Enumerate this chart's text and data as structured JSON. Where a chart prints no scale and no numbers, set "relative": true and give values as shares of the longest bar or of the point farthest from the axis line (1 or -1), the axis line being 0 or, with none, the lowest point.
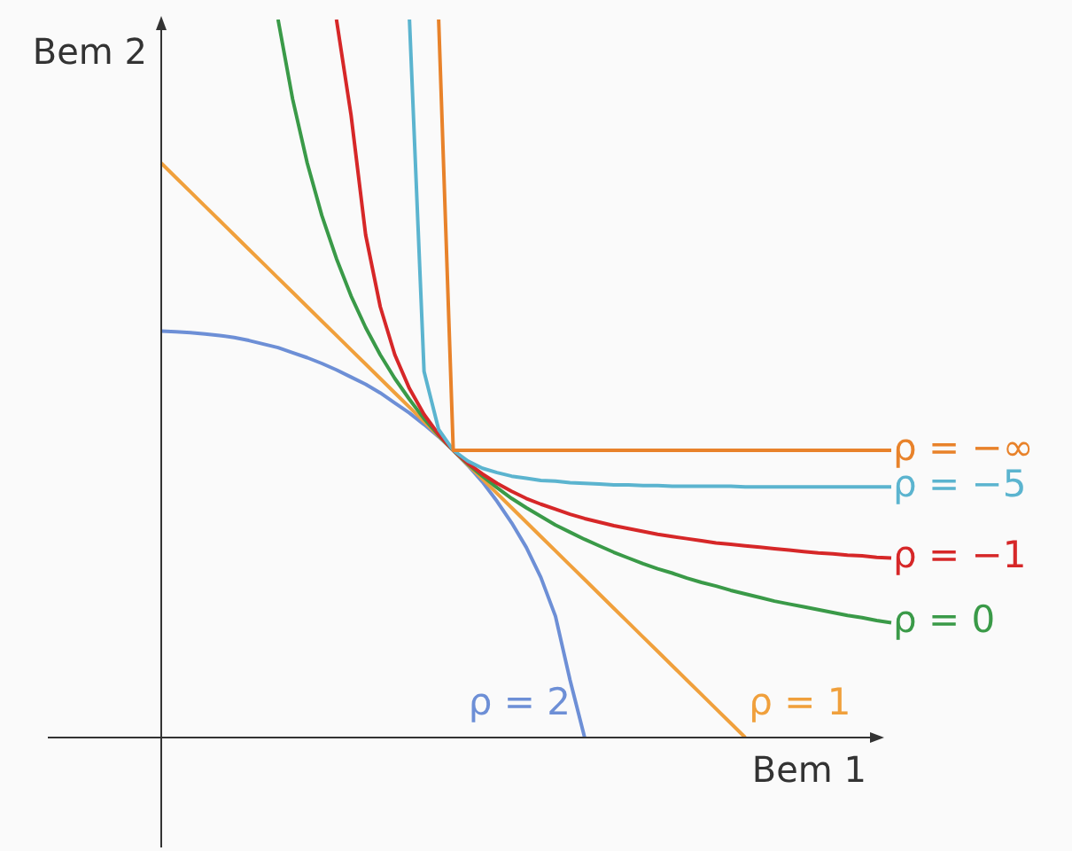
{
  "chart_data": {
    "type": "line",
    "xlabel": "Bem 1",
    "ylabel": "Bem 2",
    "relative": true,
    "marker": "none",
    "categories": [
      null,
      null,
      null,
      null,
      null,
      null,
      null,
      null,
      null,
      null,
      null,
      null,
      null,
      null,
      null,
      null,
      null,
      null,
      null,
      null,
      null,
      null,
      null,
      null,
      null,
      null,
      null,
      null,
      null,
      null,
      null,
      null,
      null,
      null,
      null,
      null,
      null,
      null,
      null,
      null,
      null,
      null,
      null,
      null,
      null,
      null,
      null,
      null,
      null,
      null,
      null
    ],
    "series": [
      {
        "name": "ρ = −∞",
        "color": "#e8822a",
        "values": [
          null,
          null,
          null,
          null,
          null,
          null,
          null,
          null,
          null,
          null,
          null,
          null,
          null,
          null,
          null,
          null,
          null,
          null,
          null,
          1,
          0.4,
          0.4,
          0.4,
          0.4,
          0.4,
          0.4,
          0.4,
          0.4,
          0.4,
          0.4,
          0.4,
          0.4,
          0.4,
          0.4,
          0.4,
          0.4,
          0.4,
          0.4,
          0.4,
          0.4,
          0.4,
          0.4,
          0.4,
          0.4,
          0.4,
          0.4,
          0.4,
          0.4,
          0.4,
          0.4,
          0.4
        ]
      },
      {
        "name": "ρ = −5",
        "color": "#5bb4cf",
        "values": [
          null,
          null,
          null,
          null,
          null,
          null,
          null,
          null,
          null,
          null,
          null,
          null,
          null,
          null,
          null,
          null,
          null,
          1,
          0.51,
          0.429,
          0.4,
          0.385,
          0.375,
          0.369,
          0.364,
          0.361,
          0.358,
          0.357,
          0.355,
          0.354,
          0.353,
          0.352,
          0.352,
          0.351,
          0.351,
          0.35,
          0.35,
          0.35,
          0.35,
          0.35,
          0.349,
          0.349,
          0.349,
          0.349,
          0.349,
          0.349,
          0.349,
          0.349,
          0.349,
          0.349,
          0.349
        ]
      },
      {
        "name": "ρ = −1",
        "color": "#d62728",
        "values": [
          null,
          null,
          null,
          null,
          null,
          null,
          null,
          null,
          null,
          null,
          null,
          null,
          1,
          0.867,
          0.7,
          0.6,
          0.533,
          0.486,
          0.45,
          0.422,
          0.4,
          0.382,
          0.367,
          0.354,
          0.343,
          0.333,
          0.325,
          0.318,
          0.311,
          0.305,
          0.3,
          0.295,
          0.291,
          0.287,
          0.283,
          0.28,
          0.277,
          0.274,
          0.271,
          0.269,
          0.267,
          0.265,
          0.263,
          0.261,
          0.259,
          0.257,
          0.256,
          0.254,
          0.253,
          0.251,
          0.25
        ]
      },
      {
        "name": "ρ = 0",
        "color": "#3a9a48",
        "values": [
          null,
          null,
          null,
          null,
          null,
          null,
          null,
          null,
          1,
          0.889,
          0.8,
          0.727,
          0.667,
          0.615,
          0.571,
          0.533,
          0.5,
          0.471,
          0.444,
          0.421,
          0.4,
          0.381,
          0.364,
          0.348,
          0.333,
          0.32,
          0.308,
          0.296,
          0.286,
          0.276,
          0.267,
          0.258,
          0.25,
          0.242,
          0.235,
          0.229,
          0.222,
          0.216,
          0.211,
          0.205,
          0.2,
          0.195,
          0.19,
          0.186,
          0.182,
          0.178,
          0.174,
          0.17,
          0.167,
          0.163,
          0.16
        ]
      },
      {
        "name": "ρ = 1",
        "color": "#f0a03c",
        "values": [
          0.8,
          0.78,
          0.76,
          0.74,
          0.72,
          0.7,
          0.68,
          0.66,
          0.64,
          0.62,
          0.6,
          0.58,
          0.56,
          0.54,
          0.52,
          0.5,
          0.48,
          0.46,
          0.44,
          0.42,
          0.4,
          0.38,
          0.36,
          0.34,
          0.32,
          0.3,
          0.28,
          0.26,
          0.24,
          0.22,
          0.2,
          0.18,
          0.16,
          0.14,
          0.12,
          0.1,
          0.08,
          0.06,
          0.04,
          0.02,
          0,
          null,
          null,
          null,
          null,
          null,
          null,
          null,
          null,
          null,
          null
        ]
      },
      {
        "name": "ρ = 2",
        "color": "#6d8fd6",
        "values": [
          0.566,
          0.565,
          0.564,
          0.562,
          0.56,
          0.557,
          0.553,
          0.548,
          0.543,
          0.536,
          0.529,
          0.521,
          0.512,
          0.502,
          0.492,
          0.48,
          0.466,
          0.452,
          0.436,
          0.419,
          0.4,
          0.379,
          0.356,
          0.329,
          0.299,
          0.265,
          0.223,
          0.169,
          0.08,
          0,
          null,
          null,
          null,
          null,
          null,
          null,
          null,
          null,
          null,
          null,
          null,
          null,
          null,
          null,
          null,
          null,
          null,
          null,
          null,
          null,
          null
        ]
      }
    ]
  }
}
